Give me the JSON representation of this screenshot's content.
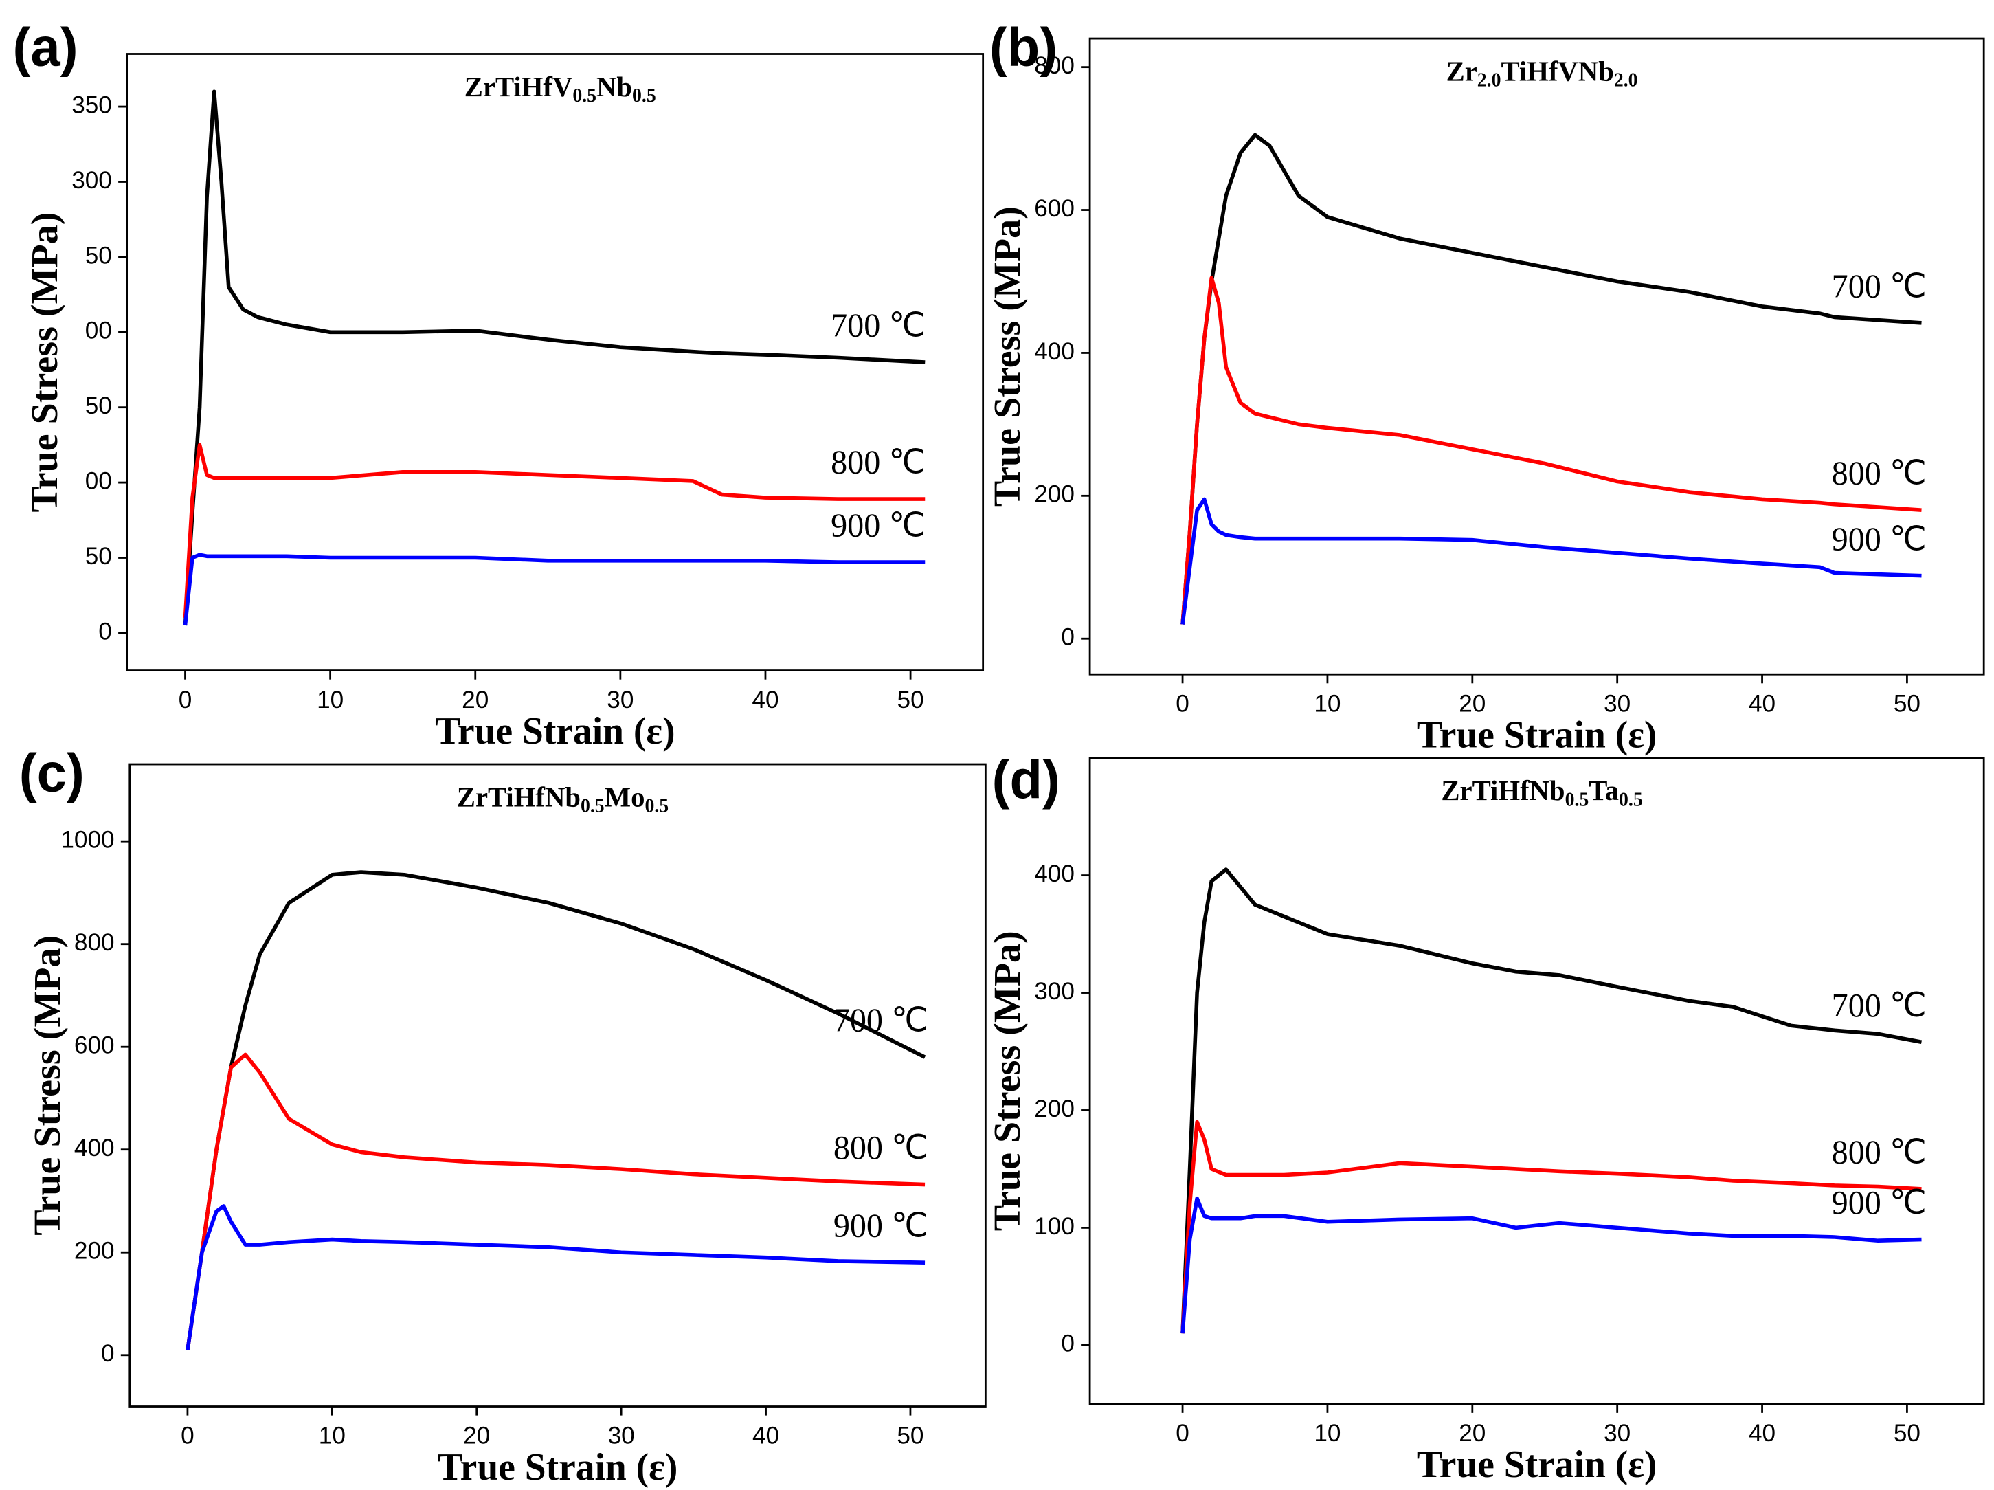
{
  "chart_data": [
    {
      "type": "line",
      "label": "(a)",
      "title": [
        "ZrTiHfV",
        "0.5",
        "Nb",
        "0.5"
      ],
      "xlabel": "True Strain (ε)",
      "ylabel": "True Stress (MPa)",
      "xlim": [
        -4,
        55
      ],
      "ylim": [
        -25,
        385
      ],
      "xticks": [
        0,
        10,
        20,
        30,
        40,
        50
      ],
      "yticks": [
        0,
        50,
        {
          "value": 100,
          "label": "00"
        },
        {
          "value": 150,
          "label": "50"
        },
        {
          "value": 200,
          "label": "00"
        },
        {
          "value": 250,
          "label": "50"
        },
        300,
        350
      ],
      "x": [
        0,
        0.5,
        1,
        1.5,
        2,
        2.5,
        3,
        4,
        5,
        7,
        10,
        15,
        20,
        25,
        30,
        35,
        37,
        40,
        45,
        51
      ],
      "series": [
        {
          "name": "700 ℃",
          "color": "#000000",
          "values": [
            5,
            80,
            150,
            290,
            360,
            300,
            230,
            215,
            210,
            205,
            200,
            200,
            201,
            195,
            190,
            187,
            186,
            185,
            183,
            180
          ]
        },
        {
          "name": "800 ℃",
          "color": "#ff0000",
          "values": [
            10,
            90,
            125,
            105,
            103,
            103,
            103,
            103,
            103,
            103,
            103,
            107,
            107,
            105,
            103,
            101,
            92,
            90,
            89,
            89
          ]
        },
        {
          "name": "900 ℃",
          "color": "#0000ff",
          "values": [
            5,
            50,
            52,
            51,
            51,
            51,
            51,
            51,
            51,
            51,
            50,
            50,
            50,
            48,
            48,
            48,
            48,
            48,
            47,
            47
          ]
        }
      ]
    },
    {
      "type": "line",
      "label": "(b)",
      "title": [
        "Zr",
        "2.0",
        "TiHfVNb",
        "2.0"
      ],
      "xlabel": "True Strain (ε)",
      "ylabel": "True Stress (MPa)",
      "xlim": [
        -6.4,
        55.3
      ],
      "ylim": [
        -50,
        840
      ],
      "xticks": [
        0,
        10,
        20,
        30,
        40,
        50
      ],
      "yticks": [
        0,
        200,
        400,
        600,
        800
      ],
      "x": [
        0,
        0.5,
        1,
        1.5,
        2,
        2.5,
        3,
        4,
        5,
        6,
        8,
        10,
        15,
        20,
        25,
        30,
        35,
        40,
        44,
        45,
        51
      ],
      "series": [
        {
          "name": "700 ℃",
          "color": "#000000",
          "values": [
            20,
            150,
            300,
            420,
            500,
            560,
            620,
            680,
            705,
            690,
            620,
            590,
            560,
            540,
            520,
            500,
            485,
            465,
            455,
            450,
            442
          ]
        },
        {
          "name": "800 ℃",
          "color": "#ff0000",
          "values": [
            20,
            150,
            300,
            420,
            505,
            470,
            380,
            330,
            315,
            310,
            300,
            295,
            285,
            265,
            245,
            220,
            205,
            195,
            190,
            188,
            180
          ]
        },
        {
          "name": "900 ℃",
          "color": "#0000ff",
          "values": [
            20,
            100,
            180,
            195,
            160,
            150,
            145,
            142,
            140,
            140,
            140,
            140,
            140,
            138,
            128,
            120,
            112,
            105,
            100,
            92,
            88
          ]
        }
      ]
    },
    {
      "type": "line",
      "label": "(c)",
      "title": [
        "ZrTiHfNb",
        "0.5",
        "Mo",
        "0.5"
      ],
      "xlabel": "True Strain (ε)",
      "ylabel": "True Stress (MPa)",
      "xlim": [
        -4,
        55.2
      ],
      "ylim": [
        -100,
        1150
      ],
      "xticks": [
        0,
        10,
        20,
        30,
        40,
        50
      ],
      "yticks": [
        0,
        200,
        400,
        600,
        800,
        1000
      ],
      "x": [
        0,
        1,
        2,
        2.5,
        3,
        4,
        5,
        7,
        10,
        12,
        15,
        20,
        25,
        30,
        35,
        40,
        45,
        51
      ],
      "series": [
        {
          "name": "700 ℃",
          "color": "#000000",
          "values": [
            10,
            200,
            400,
            480,
            560,
            680,
            780,
            880,
            935,
            940,
            935,
            910,
            880,
            840,
            790,
            730,
            665,
            580
          ]
        },
        {
          "name": "800 ℃",
          "color": "#ff0000",
          "values": [
            10,
            200,
            400,
            480,
            560,
            585,
            550,
            460,
            410,
            395,
            385,
            375,
            370,
            362,
            352,
            345,
            338,
            332
          ]
        },
        {
          "name": "900 ℃",
          "color": "#0000ff",
          "values": [
            10,
            200,
            280,
            290,
            260,
            215,
            215,
            220,
            225,
            222,
            220,
            215,
            210,
            200,
            195,
            190,
            183,
            180
          ]
        }
      ]
    },
    {
      "type": "line",
      "label": "(d)",
      "title": [
        "ZrTiHfNb",
        "0.5",
        "Ta",
        "0.5"
      ],
      "xlabel": "True Strain (ε)",
      "ylabel": "True Stress (MPa)",
      "xlim": [
        -6.4,
        55.3
      ],
      "ylim": [
        -50,
        500
      ],
      "xticks": [
        0,
        10,
        20,
        30,
        40,
        50
      ],
      "yticks": [
        0,
        100,
        200,
        300,
        400
      ],
      "x": [
        0,
        0.5,
        1,
        1.5,
        2,
        3,
        4,
        5,
        7,
        10,
        15,
        20,
        23,
        26,
        30,
        35,
        38,
        42,
        45,
        48,
        51
      ],
      "series": [
        {
          "name": "700 ℃",
          "color": "#000000",
          "values": [
            10,
            150,
            300,
            360,
            395,
            405,
            390,
            375,
            365,
            350,
            340,
            325,
            318,
            315,
            305,
            293,
            288,
            272,
            268,
            265,
            258
          ]
        },
        {
          "name": "800 ℃",
          "color": "#ff0000",
          "values": [
            10,
            120,
            190,
            175,
            150,
            145,
            145,
            145,
            145,
            147,
            155,
            152,
            150,
            148,
            146,
            143,
            140,
            138,
            136,
            135,
            133
          ]
        },
        {
          "name": "900 ℃",
          "color": "#0000ff",
          "values": [
            10,
            90,
            125,
            110,
            108,
            108,
            108,
            110,
            110,
            105,
            107,
            108,
            100,
            104,
            100,
            95,
            93,
            93,
            92,
            89,
            90
          ]
        }
      ]
    }
  ]
}
